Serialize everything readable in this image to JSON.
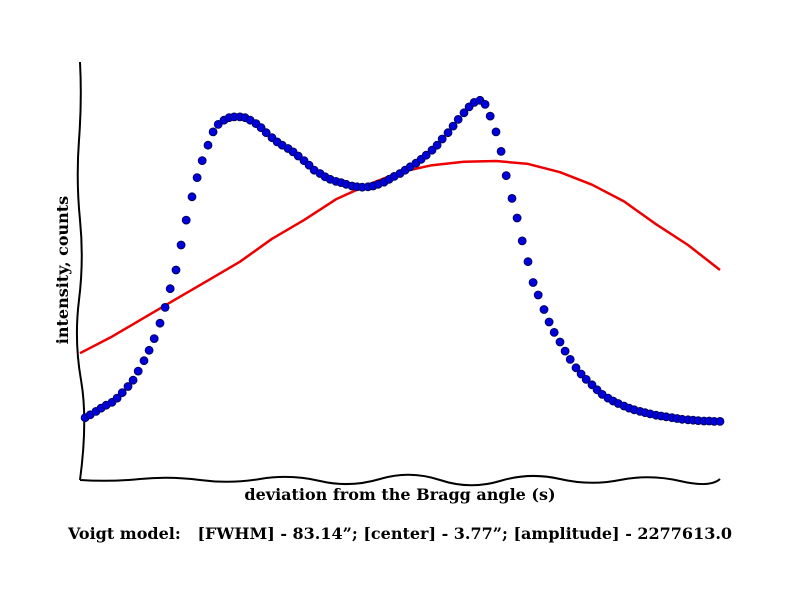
{
  "chart_data": {
    "type": "scatter",
    "title": "",
    "xlabel": "deviation from the Bragg angle (s)",
    "ylabel": "intensity, counts",
    "caption": "Voigt model:   [FWHM] - 83.14”; [center] - 3.77”; [amplitude] - 2277613.0",
    "xlim": [
      0,
      1
    ],
    "ylim": [
      0,
      1
    ],
    "grid": false,
    "legend": "none",
    "tick_labels_shown": false,
    "colors": {
      "data": "#0000dd",
      "data_edge": "#000044",
      "fit": "#ee0000",
      "axes": "#000000"
    },
    "series": [
      {
        "kind": "points",
        "x": [
          0.008,
          0.016,
          0.025,
          0.033,
          0.041,
          0.05,
          0.058,
          0.066,
          0.075,
          0.083,
          0.091,
          0.1,
          0.108,
          0.116,
          0.125,
          0.133,
          0.141,
          0.15,
          0.158,
          0.166,
          0.175,
          0.183,
          0.191,
          0.2,
          0.208,
          0.216,
          0.225,
          0.233,
          0.241,
          0.25,
          0.258,
          0.266,
          0.275,
          0.283,
          0.291,
          0.3,
          0.308,
          0.316,
          0.325,
          0.333,
          0.341,
          0.35,
          0.358,
          0.366,
          0.375,
          0.383,
          0.391,
          0.4,
          0.408,
          0.416,
          0.425,
          0.433,
          0.441,
          0.45,
          0.458,
          0.466,
          0.475,
          0.483,
          0.491,
          0.5,
          0.508,
          0.516,
          0.525,
          0.533,
          0.541,
          0.55,
          0.558,
          0.566,
          0.575,
          0.583,
          0.591,
          0.6,
          0.608,
          0.616,
          0.625,
          0.633,
          0.641,
          0.65,
          0.658,
          0.666,
          0.675,
          0.683,
          0.691,
          0.7,
          0.708,
          0.716,
          0.725,
          0.733,
          0.741,
          0.75,
          0.758,
          0.766,
          0.775,
          0.783,
          0.791,
          0.8,
          0.808,
          0.816,
          0.825,
          0.833,
          0.841,
          0.85,
          0.858,
          0.866,
          0.875,
          0.883,
          0.891,
          0.9,
          0.908,
          0.916,
          0.925,
          0.933,
          0.941,
          0.95,
          0.958,
          0.966,
          0.975,
          0.983,
          0.991,
          1.0
        ],
        "y": [
          0.145,
          0.152,
          0.16,
          0.168,
          0.175,
          0.182,
          0.192,
          0.205,
          0.22,
          0.235,
          0.257,
          0.282,
          0.307,
          0.335,
          0.372,
          0.41,
          0.455,
          0.5,
          0.56,
          0.62,
          0.676,
          0.722,
          0.763,
          0.8,
          0.832,
          0.85,
          0.86,
          0.866,
          0.868,
          0.868,
          0.866,
          0.86,
          0.852,
          0.842,
          0.83,
          0.818,
          0.808,
          0.8,
          0.792,
          0.784,
          0.774,
          0.763,
          0.752,
          0.74,
          0.732,
          0.724,
          0.718,
          0.713,
          0.71,
          0.706,
          0.702,
          0.7,
          0.699,
          0.7,
          0.702,
          0.706,
          0.711,
          0.718,
          0.725,
          0.732,
          0.74,
          0.748,
          0.757,
          0.766,
          0.776,
          0.788,
          0.8,
          0.815,
          0.83,
          0.846,
          0.862,
          0.878,
          0.892,
          0.903,
          0.908,
          0.898,
          0.87,
          0.832,
          0.785,
          0.727,
          0.672,
          0.625,
          0.57,
          0.52,
          0.47,
          0.44,
          0.405,
          0.375,
          0.35,
          0.327,
          0.305,
          0.285,
          0.265,
          0.25,
          0.237,
          0.224,
          0.212,
          0.201,
          0.192,
          0.185,
          0.179,
          0.173,
          0.168,
          0.164,
          0.16,
          0.157,
          0.154,
          0.151,
          0.149,
          0.147,
          0.145,
          0.143,
          0.141,
          0.14,
          0.139,
          0.138,
          0.137,
          0.137,
          0.136,
          0.136
        ]
      },
      {
        "kind": "fit-line",
        "x": [
          0.0,
          0.05,
          0.1,
          0.15,
          0.2,
          0.25,
          0.3,
          0.35,
          0.4,
          0.45,
          0.5,
          0.55,
          0.6,
          0.65,
          0.7,
          0.75,
          0.8,
          0.85,
          0.9,
          0.95,
          1.0
        ],
        "y": [
          0.3,
          0.34,
          0.385,
          0.43,
          0.475,
          0.52,
          0.575,
          0.62,
          0.67,
          0.705,
          0.735,
          0.752,
          0.76,
          0.762,
          0.755,
          0.735,
          0.705,
          0.665,
          0.61,
          0.56,
          0.5
        ]
      }
    ]
  }
}
